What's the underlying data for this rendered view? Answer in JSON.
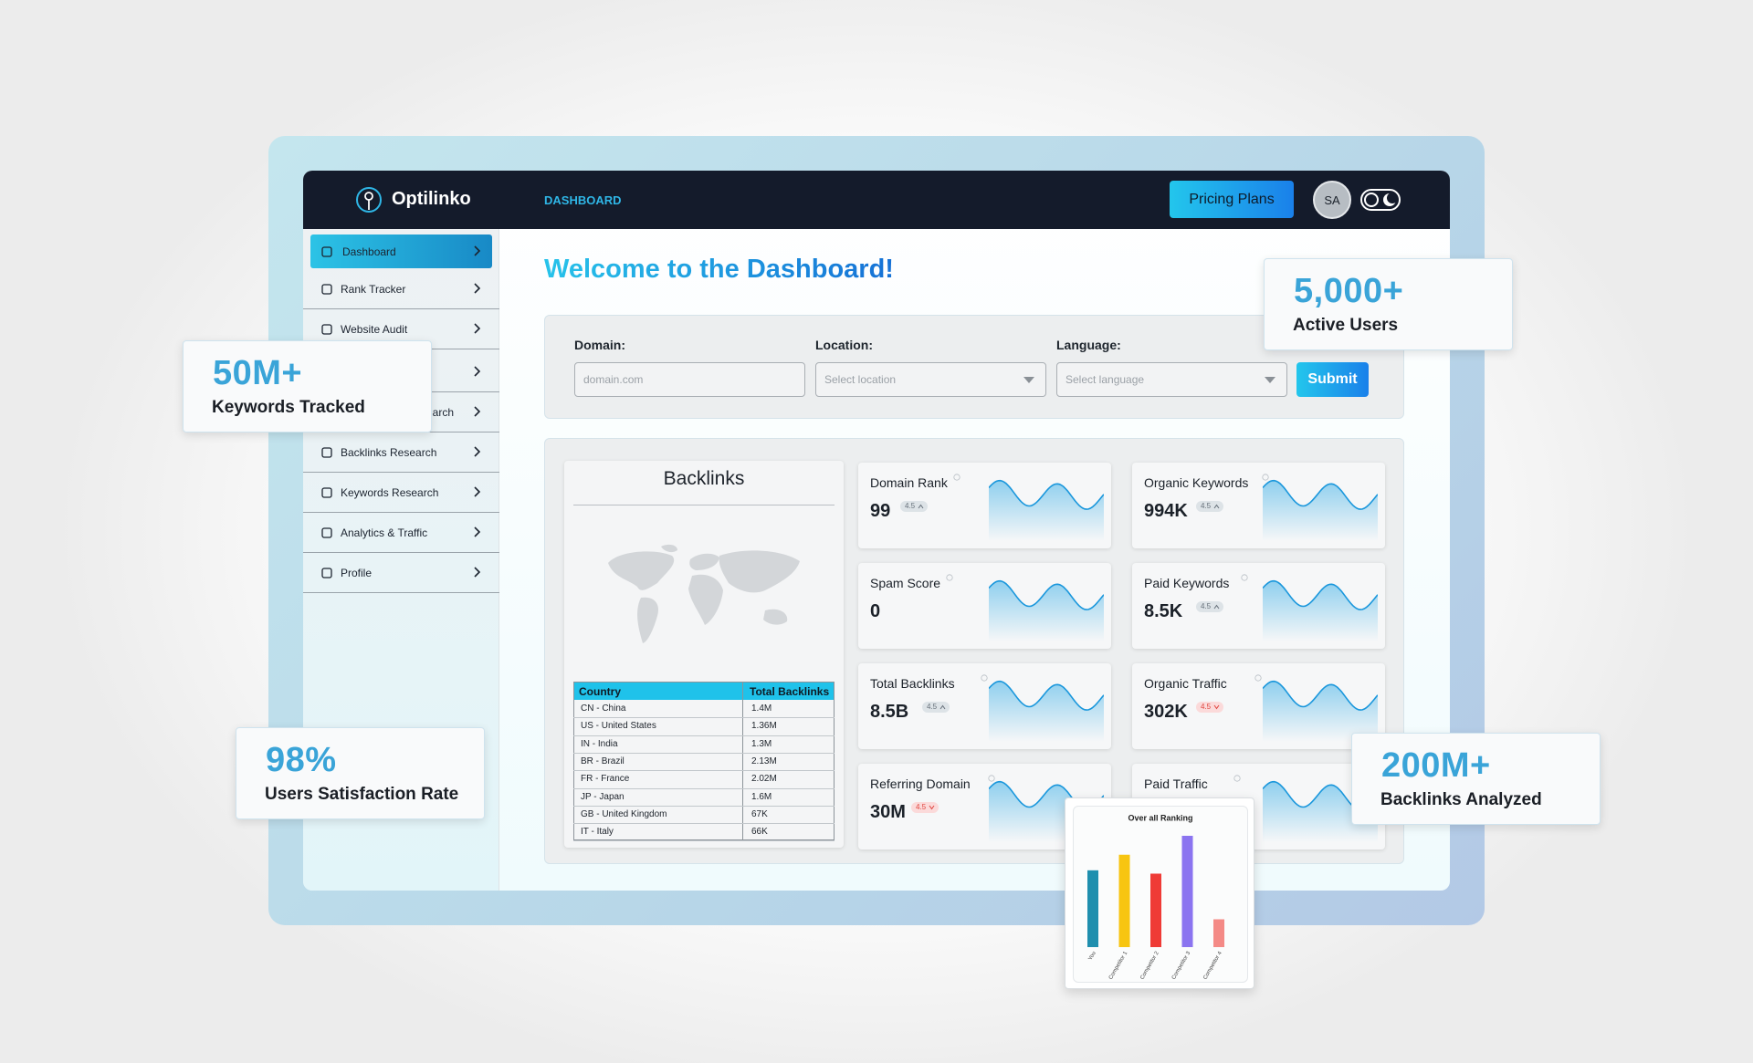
{
  "header": {
    "logo": "Optilinko",
    "nav": "DASHBOARD",
    "button": "Pricing Plans",
    "avatar": "SA"
  },
  "sidebar": {
    "items": [
      "Dashboard",
      "Rank Tracker",
      "Website Audit",
      "arch",
      "Backlinks Research",
      "Keywords Research",
      "Analytics & Traffic",
      "Profile"
    ]
  },
  "welcome": "Welcome to the Dashboard!",
  "form": {
    "fields": [
      {
        "label": "Domain:",
        "placeholder": "domain.com"
      },
      {
        "label": "Location:",
        "placeholder": "Select location"
      },
      {
        "label": "Language:",
        "placeholder": "Select language"
      }
    ],
    "submit": "Submit"
  },
  "backlinks": {
    "title": "Backlinks",
    "columns": [
      "Country",
      "Total Backlinks"
    ],
    "rows": [
      [
        "CN - China",
        "1.4M"
      ],
      [
        "US - United States",
        "1.36M"
      ],
      [
        "IN - India",
        "1.3M"
      ],
      [
        "BR - Brazil",
        "2.13M"
      ],
      [
        "FR - France",
        "2.02M"
      ],
      [
        "JP - Japan",
        "1.6M"
      ],
      [
        "GB - United Kingdom",
        "67K"
      ],
      [
        "IT - Italy",
        "66K"
      ]
    ]
  },
  "metrics": [
    {
      "name": "Domain Rank",
      "value": "99",
      "badge": "4.5",
      "trend": "up"
    },
    {
      "name": "Organic Keywords",
      "value": "994K",
      "badge": "4.5",
      "trend": "up"
    },
    {
      "name": "Spam Score",
      "value": "0"
    },
    {
      "name": "Paid Keywords",
      "value": "8.5K",
      "badge": "4.5",
      "trend": "up"
    },
    {
      "name": "Total Backlinks",
      "value": "8.5B",
      "badge": "4.5",
      "trend": "up"
    },
    {
      "name": "Organic Traffic",
      "value": "302K",
      "badge": "4.5",
      "trend": "down"
    },
    {
      "name": "Referring Domain",
      "value": "30M",
      "badge": "4.5",
      "trend": "down"
    },
    {
      "name": "Paid Traffic"
    }
  ],
  "stats": [
    {
      "value": "50M+",
      "label": "Keywords Tracked"
    },
    {
      "value": "5,000+",
      "label": "Active Users"
    },
    {
      "value": "98%",
      "label": "Users Satisfaction Rate"
    },
    {
      "value": "200M+",
      "label": "Backlinks Analyzed"
    }
  ],
  "ranking_chart": {
    "type": "bar",
    "title": "Over all Ranking",
    "categories": [
      "You",
      "Competitor 1",
      "Competitor 2",
      "Competitor 3",
      "Competitor 4"
    ],
    "values": [
      69,
      83,
      66,
      100,
      25
    ],
    "colors": [
      "#1f8fae",
      "#f7c511",
      "#ef3b36",
      "#8b74f0",
      "#f48a86"
    ]
  }
}
